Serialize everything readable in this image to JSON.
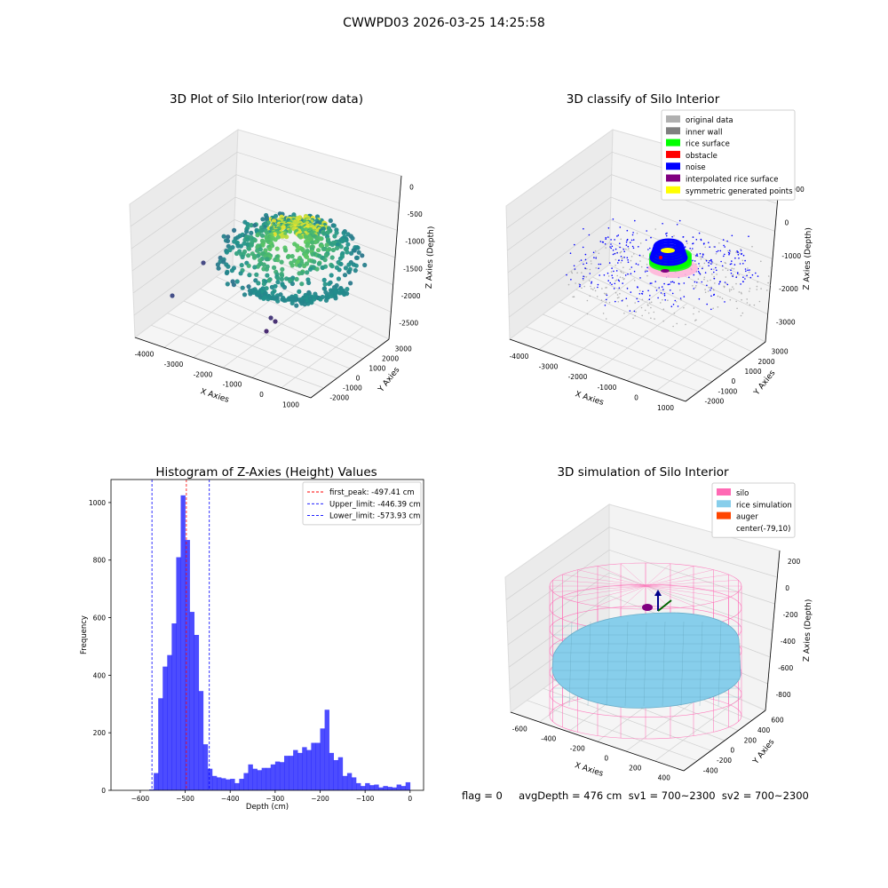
{
  "figure": {
    "suptitle": "CWWPD03 2026-03-25 14:25:58",
    "status_line": "flag = 0     avgDepth = 476 cm  sv1 = 700~2300  sv2 = 700~2300"
  },
  "chart_data": [
    {
      "type": "scatter",
      "projection": "3d",
      "title": "3D Plot of Silo Interior(row data)",
      "xlabel": "X Axies",
      "ylabel": "Y Axies",
      "zlabel": "Z Axies (Depth)",
      "x_ticks": [
        "-4000",
        "-3000",
        "-2000",
        "-1000",
        "0",
        "1000"
      ],
      "y_ticks": [
        "-2000",
        "-1000",
        "0",
        "1000",
        "2000",
        "3000"
      ],
      "z_ticks": [
        "0",
        "-500",
        "-1000",
        "-1500",
        "-2000",
        "-2500"
      ],
      "colormap": "viridis"
    },
    {
      "type": "scatter",
      "projection": "3d",
      "title": "3D classify of Silo Interior",
      "xlabel": "X Axies",
      "ylabel": "Y Axies",
      "zlabel": "Z Axies (Depth)",
      "x_ticks": [
        "-4000",
        "-3000",
        "-2000",
        "-1000",
        "0",
        "1000"
      ],
      "y_ticks": [
        "-2000",
        "-1000",
        "0",
        "1000",
        "2000",
        "3000"
      ],
      "z_ticks": [
        "1000",
        "0",
        "-1000",
        "-2000",
        "-3000"
      ],
      "legend_position": "top-right",
      "legend": [
        {
          "label": "original data",
          "color": "#b0b0b0"
        },
        {
          "label": "inner wall",
          "color": "#808080"
        },
        {
          "label": "rice surface",
          "color": "#00ff00"
        },
        {
          "label": "obstacle",
          "color": "#ff0000"
        },
        {
          "label": "noise",
          "color": "#0000ff"
        },
        {
          "label": "interpolated rice surface",
          "color": "#800080"
        },
        {
          "label": "symmetric generated points",
          "color": "#ffff00"
        }
      ]
    },
    {
      "type": "bar",
      "title": "Histogram of Z-Axies (Height) Values",
      "xlabel": "Depth (cm)",
      "ylabel": "Frequency",
      "xlim": [
        -665,
        30
      ],
      "ylim": [
        0,
        1080
      ],
      "x_ticks": [
        -600,
        -500,
        -400,
        -300,
        -200,
        -100,
        0
      ],
      "y_ticks": [
        0,
        200,
        400,
        600,
        800,
        1000
      ],
      "bar_color": "#0000ff",
      "bin_width": 10,
      "bins_left": [
        -580,
        -570,
        -560,
        -550,
        -540,
        -530,
        -520,
        -510,
        -500,
        -490,
        -480,
        -470,
        -460,
        -450,
        -440,
        -430,
        -420,
        -410,
        -400,
        -390,
        -380,
        -370,
        -360,
        -350,
        -340,
        -330,
        -320,
        -310,
        -300,
        -290,
        -280,
        -270,
        -260,
        -250,
        -240,
        -230,
        -220,
        -210,
        -200,
        -190,
        -180,
        -170,
        -160,
        -150,
        -140,
        -130,
        -120,
        -110,
        -100,
        -90,
        -80,
        -70,
        -60,
        -50,
        -40,
        -30,
        -20,
        -10
      ],
      "values": [
        3,
        60,
        320,
        430,
        470,
        580,
        810,
        1025,
        870,
        620,
        540,
        345,
        160,
        75,
        50,
        45,
        42,
        38,
        40,
        25,
        40,
        60,
        90,
        75,
        70,
        78,
        78,
        90,
        100,
        98,
        120,
        120,
        140,
        130,
        150,
        140,
        165,
        165,
        215,
        280,
        130,
        105,
        115,
        50,
        60,
        45,
        25,
        15,
        25,
        18,
        20,
        10,
        15,
        12,
        10,
        20,
        15,
        28
      ],
      "reference_lines": [
        {
          "label": "first_peak: -497.41 cm",
          "x": -497.41,
          "color": "#ff0000"
        },
        {
          "label": "Upper_limit: -446.39 cm",
          "x": -446.39,
          "color": "#0000ff"
        },
        {
          "label": "Lower_limit: -573.93 cm",
          "x": -573.93,
          "color": "#0000ff"
        }
      ],
      "legend_position": "top-right"
    },
    {
      "type": "surface",
      "projection": "3d",
      "title": "3D simulation of Silo Interior",
      "xlabel": "X Axies",
      "ylabel": "Y Axies",
      "zlabel": "Z Axies (Depth)",
      "x_ticks": [
        "-600",
        "-400",
        "-200",
        "0",
        "200",
        "400"
      ],
      "y_ticks": [
        "-400",
        "-200",
        "0",
        "200",
        "400",
        "600"
      ],
      "z_ticks": [
        "200",
        "0",
        "-200",
        "-400",
        "-600",
        "-800"
      ],
      "legend_position": "top-right",
      "legend": [
        {
          "label": "silo",
          "color": "#ff69b4"
        },
        {
          "label": "rice simulation",
          "color": "#87ceeb"
        },
        {
          "label": "auger",
          "color": "#ff4500"
        },
        {
          "label": "center(-79,10)",
          "color": "#ffffff"
        }
      ]
    }
  ]
}
